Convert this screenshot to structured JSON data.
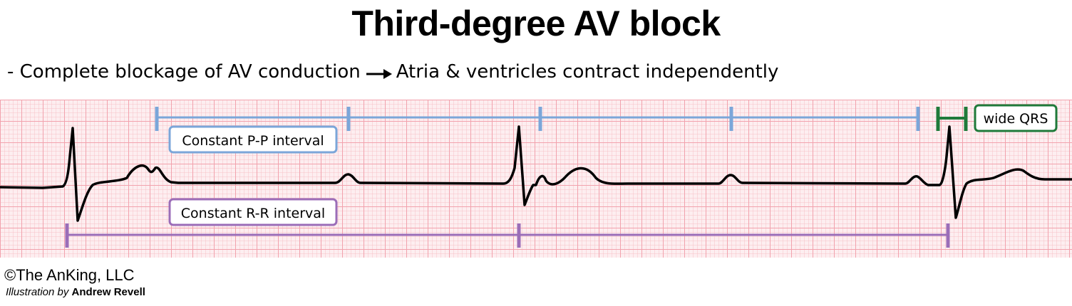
{
  "title": "Third-degree AV block",
  "subtitle": {
    "bullet": "- Complete blockage of AV conduction",
    "arrow_icon": "right-arrow",
    "result": "Atria & ventricles contract independently"
  },
  "ecg": {
    "pp_label": "Constant P-P interval",
    "rr_label": "Constant R-R interval",
    "wide_qrs_label": "wide QRS",
    "colors": {
      "grid_minor": "#f6c1c7",
      "grid_major": "#f2a2ad",
      "grid_background": "#fdeef0",
      "trace": "#000000",
      "pp": "#7ba6d9",
      "rr": "#9b6db8",
      "wide_qrs": "#1f7a3a"
    }
  },
  "footer": {
    "copyright": "©The AnKing, LLC",
    "credit_prefix": "Illustration by",
    "credit_author": "Andrew Revell"
  }
}
